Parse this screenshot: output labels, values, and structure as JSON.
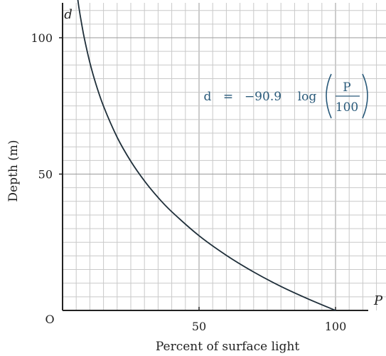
{
  "chart_data": {
    "type": "line",
    "title": "",
    "xlabel": "Percent of surface light",
    "ylabel": "Depth (m)",
    "x_axis_letter": "P",
    "y_axis_letter": "d",
    "origin_label": "O",
    "xlim": [
      0,
      110
    ],
    "ylim": [
      0,
      110
    ],
    "x_ticks": [
      50,
      100
    ],
    "x_tick_labels": [
      "50",
      "100"
    ],
    "y_ticks": [
      50,
      100
    ],
    "y_tick_labels": [
      "50",
      "100"
    ],
    "grid": true,
    "equation": {
      "lhs": "d",
      "eq": "=",
      "coef": "−90.9",
      "fn": "log",
      "num": "P",
      "den": "100"
    },
    "series": [
      {
        "x": [
          5,
          6,
          7,
          8,
          10,
          12,
          15,
          20,
          25,
          30,
          35,
          40,
          50,
          60,
          70,
          80,
          90,
          100
        ],
        "y": [
          118.3,
          111.1,
          105.0,
          99.7,
          90.9,
          83.7,
          74.9,
          63.5,
          54.7,
          47.5,
          41.4,
          36.2,
          27.4,
          20.2,
          14.1,
          8.8,
          4.2,
          0.0
        ]
      }
    ]
  }
}
